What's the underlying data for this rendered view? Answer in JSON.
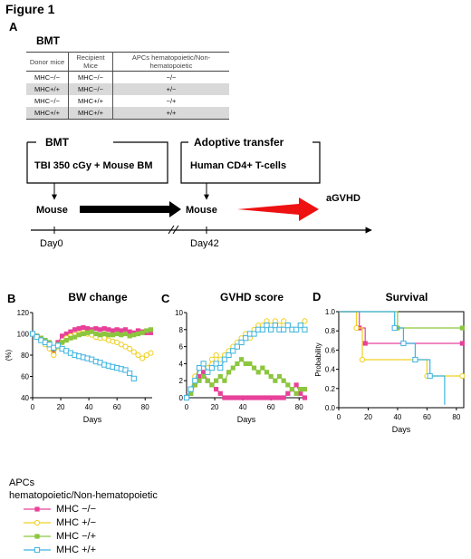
{
  "figure_title": "Figure 1",
  "panel_a": {
    "letter": "A",
    "bmt_heading": "BMT",
    "table": {
      "headers": [
        "Donor mice",
        "Recipient Mice",
        "APCs hematopoietic/Non-hematopoietic"
      ],
      "rows": [
        [
          "MHC−/−",
          "MHC−/−",
          "−/−"
        ],
        [
          "MHC+/+",
          "MHC−/−",
          "+/−"
        ],
        [
          "MHC−/−",
          "MHC+/+",
          "−/+"
        ],
        [
          "MHC+/+",
          "MHC+/+",
          "+/+"
        ]
      ]
    },
    "step1_label": "BMT",
    "step1_box": "TBI 350 cGy + Mouse BM",
    "step2_label": "Adoptive transfer",
    "step2_box": "Human CD4+ T-cells",
    "mouse1": "Mouse",
    "mouse2": "Mouse",
    "outcome": "aGVHD",
    "day0": "Day0",
    "day42": "Day42",
    "colors": {
      "arrow_black": "#000000",
      "arrow_red": "#ee1111"
    }
  },
  "panel_b_letter": "B",
  "panel_c_letter": "C",
  "panel_d_letter": "D",
  "chart_data": [
    {
      "type": "line",
      "title": "BW change",
      "xlabel": "Days",
      "ylabel": "(%)",
      "xlim": [
        0,
        85
      ],
      "ylim": [
        40,
        120
      ],
      "xticks": [
        0,
        20,
        40,
        60,
        80
      ],
      "yticks": [
        40,
        60,
        80,
        100,
        120
      ],
      "series": [
        {
          "color": "#e8419a",
          "marker": "square-filled",
          "x": [
            0,
            3,
            6,
            9,
            12,
            15,
            18,
            21,
            24,
            27,
            30,
            33,
            36,
            39,
            42,
            45,
            48,
            51,
            54,
            57,
            60,
            63,
            66,
            69,
            72,
            75,
            78,
            81,
            84
          ],
          "values": [
            100,
            98,
            96,
            92,
            88,
            82,
            92,
            98,
            100,
            102,
            104,
            105,
            106,
            105,
            104,
            105,
            104,
            105,
            104,
            103,
            104,
            103,
            104,
            102,
            101,
            103,
            102,
            101,
            101
          ]
        },
        {
          "color": "#f0d020",
          "marker": "circle-open",
          "x": [
            0,
            3,
            6,
            9,
            12,
            15,
            18,
            21,
            24,
            27,
            30,
            33,
            36,
            39,
            42,
            45,
            48,
            51,
            54,
            57,
            60,
            63,
            66,
            69,
            72,
            75,
            78,
            81,
            84
          ],
          "values": [
            100,
            97,
            94,
            90,
            86,
            80,
            88,
            92,
            96,
            98,
            99,
            100,
            101,
            100,
            99,
            97,
            96,
            96,
            94,
            93,
            92,
            90,
            88,
            86,
            83,
            80,
            77,
            80,
            82
          ]
        },
        {
          "color": "#8cc63e",
          "marker": "square-filled",
          "x": [
            0,
            3,
            6,
            9,
            12,
            15,
            18,
            21,
            24,
            27,
            30,
            33,
            36,
            39,
            42,
            45,
            48,
            51,
            54,
            57,
            60,
            63,
            66,
            69,
            72,
            75,
            78,
            81,
            84
          ],
          "values": [
            100,
            98,
            96,
            94,
            92,
            86,
            90,
            92,
            94,
            96,
            97,
            99,
            100,
            101,
            102,
            100,
            99,
            100,
            99,
            99,
            100,
            99,
            100,
            98,
            99,
            100,
            101,
            103,
            104
          ]
        },
        {
          "color": "#3cb4e0",
          "marker": "square-open",
          "x": [
            0,
            3,
            6,
            9,
            12,
            15,
            18,
            21,
            24,
            27,
            30,
            33,
            36,
            39,
            42,
            45,
            48,
            51,
            54,
            57,
            60,
            63,
            66,
            69,
            72
          ],
          "values": [
            100,
            97,
            94,
            92,
            90,
            87,
            89,
            86,
            84,
            82,
            80,
            79,
            78,
            77,
            76,
            74,
            73,
            71,
            70,
            69,
            68,
            67,
            66,
            63,
            58
          ]
        }
      ]
    },
    {
      "type": "line",
      "title": "GVHD score",
      "xlabel": "Days",
      "xlim": [
        0,
        85
      ],
      "ylim": [
        0,
        10
      ],
      "xticks": [
        0,
        20,
        40,
        60,
        80
      ],
      "yticks": [
        0,
        2,
        4,
        6,
        8,
        10
      ],
      "series": [
        {
          "color": "#e8419a",
          "marker": "square-filled",
          "x": [
            0,
            3,
            6,
            9,
            12,
            15,
            18,
            21,
            24,
            27,
            30,
            33,
            36,
            39,
            42,
            45,
            48,
            51,
            54,
            57,
            60,
            63,
            66,
            69,
            72,
            75,
            78,
            81,
            84
          ],
          "values": [
            0,
            0.5,
            1.5,
            2.5,
            3,
            2,
            1.5,
            1,
            0.5,
            0,
            0,
            0,
            0,
            0,
            0,
            0,
            0,
            0,
            0,
            0,
            0,
            0,
            0,
            0,
            0.5,
            1,
            1.5,
            0.5,
            0
          ]
        },
        {
          "color": "#f0d020",
          "marker": "circle-open",
          "x": [
            0,
            3,
            6,
            9,
            12,
            15,
            18,
            21,
            24,
            27,
            30,
            33,
            36,
            39,
            42,
            45,
            48,
            51,
            54,
            57,
            60,
            63,
            66,
            69,
            72,
            75,
            78,
            81,
            84
          ],
          "values": [
            0,
            1,
            2.5,
            3.5,
            4,
            3.5,
            4.5,
            5,
            4.5,
            5,
            5.5,
            6,
            6.5,
            7,
            7.5,
            7,
            8,
            8.5,
            8.5,
            9,
            8.5,
            9,
            8.5,
            9,
            8.5,
            8,
            8,
            8.5,
            9
          ]
        },
        {
          "color": "#8cc63e",
          "marker": "square-filled",
          "x": [
            0,
            3,
            6,
            9,
            12,
            15,
            18,
            21,
            24,
            27,
            30,
            33,
            36,
            39,
            42,
            45,
            48,
            51,
            54,
            57,
            60,
            63,
            66,
            69,
            72,
            75,
            78,
            81,
            84
          ],
          "values": [
            0,
            0.5,
            1.5,
            2,
            2.5,
            2,
            1.5,
            2,
            2.5,
            2,
            3,
            3.5,
            4,
            4.5,
            4,
            4,
            3.5,
            3,
            3.5,
            3,
            2.5,
            2,
            2.5,
            2,
            1.5,
            1,
            0.5,
            1,
            1
          ]
        },
        {
          "color": "#3cb4e0",
          "marker": "square-open",
          "x": [
            0,
            3,
            6,
            9,
            12,
            15,
            18,
            21,
            24,
            27,
            30,
            33,
            36,
            39,
            42,
            45,
            48,
            51,
            54,
            57,
            60,
            63,
            66,
            69,
            72,
            75,
            78,
            81,
            84
          ],
          "values": [
            0,
            1,
            2,
            3.5,
            4,
            3,
            3.5,
            4,
            3.5,
            4.5,
            5,
            5.5,
            6,
            6.5,
            7,
            7.5,
            7.5,
            8,
            8,
            8.5,
            8,
            8.5,
            8,
            8,
            8.5,
            8,
            8,
            8.5,
            8
          ]
        }
      ]
    },
    {
      "type": "line",
      "title": "Survival",
      "xlabel": "Days",
      "ylabel": "Probability",
      "xlim": [
        0,
        85
      ],
      "ylim": [
        0,
        1
      ],
      "xticks": [
        0,
        20,
        40,
        60,
        80
      ],
      "yticks": [
        0,
        0.2,
        0.4,
        0.6,
        0.8,
        1.0
      ],
      "series": [
        {
          "color": "#e8419a",
          "marker": "square-filled",
          "x": [
            0,
            14,
            14,
            18,
            18,
            84
          ],
          "values": [
            1,
            1,
            0.83,
            0.83,
            0.67,
            0.67
          ],
          "marks": [
            [
              14,
              0.83
            ],
            [
              18,
              0.67
            ],
            [
              84,
              0.67
            ]
          ]
        },
        {
          "color": "#f0d020",
          "marker": "circle-open",
          "x": [
            0,
            12,
            12,
            16,
            16,
            60,
            60,
            84
          ],
          "values": [
            1,
            1,
            0.83,
            0.83,
            0.5,
            0.5,
            0.33,
            0.33
          ],
          "marks": [
            [
              12,
              0.83
            ],
            [
              16,
              0.5
            ],
            [
              60,
              0.33
            ],
            [
              84,
              0.33
            ]
          ]
        },
        {
          "color": "#8cc63e",
          "marker": "square-filled",
          "x": [
            0,
            40,
            40,
            84
          ],
          "values": [
            1,
            1,
            0.83,
            0.83
          ],
          "marks": [
            [
              40,
              0.83
            ],
            [
              84,
              0.83
            ]
          ]
        },
        {
          "color": "#3cb4e0",
          "marker": "square-open",
          "x": [
            0,
            38,
            38,
            44,
            44,
            52,
            52,
            62,
            62,
            72,
            72
          ],
          "values": [
            1,
            1,
            0.83,
            0.83,
            0.67,
            0.67,
            0.5,
            0.5,
            0.33,
            0.33,
            0.03
          ],
          "marks": [
            [
              38,
              0.83
            ],
            [
              44,
              0.67
            ],
            [
              52,
              0.5
            ],
            [
              62,
              0.33
            ]
          ]
        }
      ]
    }
  ],
  "legend": {
    "title_line1": "APCs",
    "title_line2": "hematopoietic/Non-hematopoietic",
    "items": [
      {
        "label": "MHC −/−",
        "color": "#e8419a",
        "marker": "square-filled"
      },
      {
        "label": "MHC +/−",
        "color": "#f0d020",
        "marker": "circle-open"
      },
      {
        "label": "MHC −/+",
        "color": "#8cc63e",
        "marker": "square-filled"
      },
      {
        "label": "MHC +/+",
        "color": "#3cb4e0",
        "marker": "square-open"
      }
    ]
  }
}
